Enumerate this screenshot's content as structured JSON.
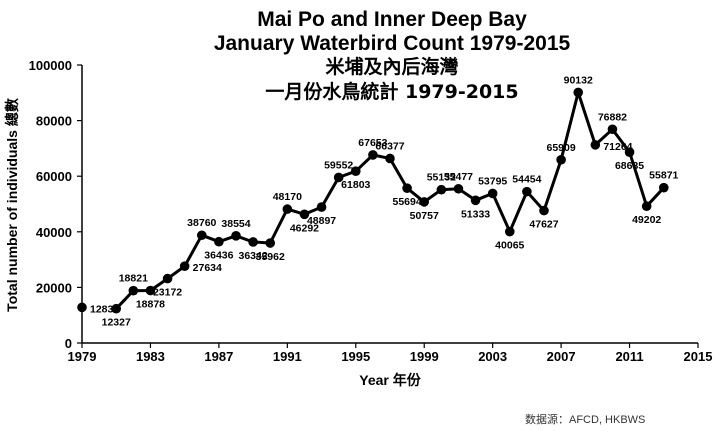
{
  "chart_data": {
    "type": "line",
    "title_lines": [
      "Mai Po and Inner Deep Bay",
      "January Waterbird Count 1979-2015",
      "米埔及內后海灣",
      "一月份水鳥統計  1979-2015"
    ],
    "xlabel": "Year 年份",
    "ylabel": "Total number of individuals 總數",
    "source": "数据源：AFCD, HKBWS",
    "xlim": [
      1979,
      2015
    ],
    "ylim": [
      0,
      100000
    ],
    "x_ticks": [
      "1979",
      "1983",
      "1987",
      "1991",
      "1995",
      "1999",
      "2003",
      "2007",
      "2011",
      "2015"
    ],
    "y_ticks": [
      "0",
      "20000",
      "40000",
      "60000",
      "80000",
      "100000"
    ],
    "grid": false,
    "legend": "none",
    "color": "#000000",
    "series": [
      {
        "x": [
          1979,
          1981,
          1982,
          1983,
          1984,
          1985,
          1986,
          1987,
          1988,
          1989,
          1990,
          1991,
          1992,
          1993,
          1994,
          1995,
          1996,
          1997,
          1998,
          1999,
          2000,
          2001,
          2002,
          2003,
          2004,
          2005,
          2006,
          2007,
          2008,
          2009,
          2010,
          2011,
          2012,
          2013
        ],
        "values": [
          12830,
          12327,
          18821,
          18878,
          23172,
          27634,
          38760,
          36436,
          38554,
          36342,
          35962,
          48170,
          46292,
          48897,
          59552,
          61803,
          67653,
          66377,
          55694,
          50757,
          55132,
          55477,
          51333,
          53795,
          40065,
          54454,
          47627,
          65909,
          90132,
          71264,
          76882,
          68635,
          49202,
          55871
        ],
        "labels": [
          "12830",
          "12327",
          "18821",
          "18878",
          "23172",
          "27634",
          "38760",
          "36436",
          "38554",
          "36342",
          "35962",
          "48170",
          "46292",
          "48897",
          "59552",
          "61803",
          "67653",
          "66377",
          "55694",
          "50757",
          "55132",
          "55477",
          "51333",
          "53795",
          "40065",
          "54454",
          "47627",
          "65909",
          "90132",
          "71264",
          "76882",
          "68635",
          "49202",
          "55871"
        ]
      }
    ]
  }
}
